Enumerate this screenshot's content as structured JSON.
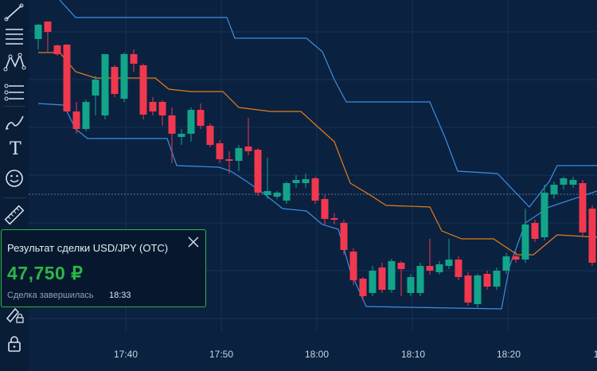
{
  "toolbar": {
    "tools": [
      {
        "name": "line-tool-icon",
        "text": ""
      },
      {
        "name": "horizontal-lines-icon",
        "text": ""
      },
      {
        "name": "pattern-icon",
        "text": ""
      },
      {
        "name": "fibonacci-icon",
        "text": ""
      },
      {
        "name": "brush-icon",
        "text": ""
      },
      {
        "name": "text-tool-icon",
        "text": "T"
      },
      {
        "name": "emoji-icon",
        "text": ""
      },
      {
        "name": "ruler-icon",
        "text": ""
      },
      {
        "name": "magnet-icon",
        "text": ""
      },
      {
        "name": "lock-drawing-icon",
        "text": ""
      },
      {
        "name": "lock-icon",
        "text": ""
      }
    ]
  },
  "time_axis": {
    "labels": [
      "17:40",
      "17:50",
      "18:00",
      "18:10",
      "18:20",
      "1"
    ]
  },
  "toast": {
    "title": "Результат сделки USD/JPY (OTC)",
    "amount": "47,750 ₽",
    "status": "Сделка завершилась",
    "time": "18:33"
  },
  "colors": {
    "background": "#0b2140",
    "up_candle": "#12a58a",
    "down_candle": "#f0384f",
    "band": "#3b8fe0",
    "middle_line": "#e67d17",
    "win_accent": "#2cb648"
  }
}
